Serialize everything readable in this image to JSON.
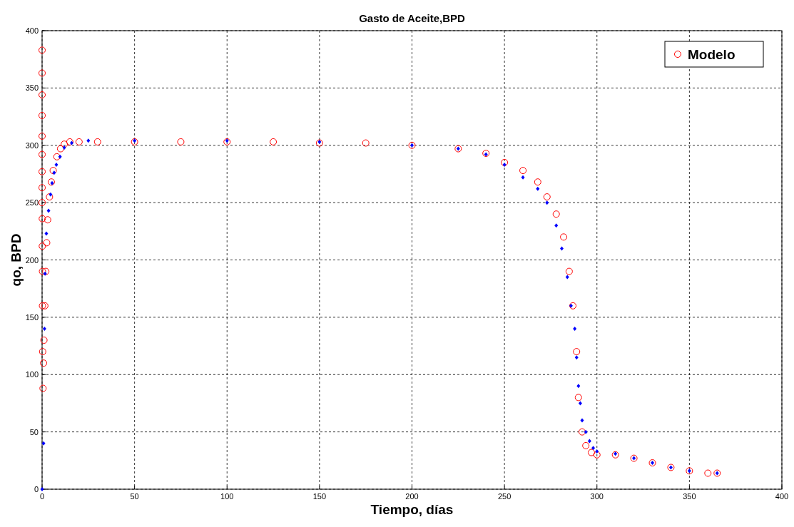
{
  "chart_data": {
    "type": "scatter",
    "title": "Gasto de Aceite,BPD",
    "xlabel": "Tiempo, días",
    "ylabel": "qo, BPD",
    "xlim": [
      0,
      400
    ],
    "xticks": [
      0,
      50,
      100,
      150,
      200,
      250,
      300,
      350,
      400
    ],
    "ylim": [
      0,
      400
    ],
    "yticks": [
      0,
      50,
      100,
      150,
      200,
      250,
      300,
      350,
      400
    ],
    "grid": true,
    "legend": "top right",
    "series": [
      {
        "name": "Modelo",
        "color": "#ff0000",
        "marker": "circle",
        "x": [
          0,
          0,
          0,
          0,
          0,
          0,
          0,
          0,
          0,
          0.1,
          0.1,
          0.2,
          0.2,
          0.3,
          0.5,
          0.8,
          1,
          1.5,
          2,
          2.5,
          3,
          4,
          5,
          6,
          8,
          10,
          12,
          15,
          20,
          30,
          50,
          75,
          100,
          125,
          150,
          175,
          200,
          225,
          240,
          250,
          260,
          268,
          273,
          278,
          282,
          285,
          287,
          289,
          290,
          292,
          294,
          297,
          300,
          310,
          320,
          330,
          340,
          350,
          360,
          365
        ],
        "values": [
          383,
          363,
          344,
          326,
          308,
          292,
          277,
          263,
          250,
          236,
          212,
          190,
          160,
          120,
          88,
          110,
          130,
          160,
          190,
          215,
          235,
          255,
          268,
          278,
          290,
          297,
          301,
          303,
          303,
          303,
          303,
          303,
          303,
          303,
          302,
          302,
          300,
          297,
          293,
          285,
          278,
          268,
          255,
          240,
          220,
          190,
          160,
          120,
          80,
          50,
          38,
          32,
          30,
          30,
          27,
          23,
          19,
          16,
          14,
          14
        ]
      },
      {
        "color": "#0000ff",
        "marker": "diamond",
        "x": [
          0,
          0.8,
          1.3,
          1.6,
          2.3,
          3.5,
          4.6,
          5.4,
          6.5,
          7.7,
          9.7,
          12,
          16,
          25,
          50,
          100,
          150,
          200,
          225,
          240,
          250,
          260,
          268,
          273,
          278,
          281,
          284,
          286,
          288,
          289,
          290,
          291,
          292,
          294,
          296,
          298,
          300,
          310,
          320,
          330,
          340,
          350,
          365
        ],
        "values": [
          0,
          40,
          140,
          188,
          223,
          243,
          257,
          267,
          276,
          283,
          290,
          298,
          302,
          304,
          304,
          304,
          303,
          300,
          297,
          292,
          283,
          272,
          262,
          250,
          230,
          210,
          185,
          160,
          140,
          115,
          90,
          75,
          60,
          50,
          42,
          36,
          33,
          31,
          27,
          23,
          19,
          16,
          14
        ]
      }
    ]
  }
}
